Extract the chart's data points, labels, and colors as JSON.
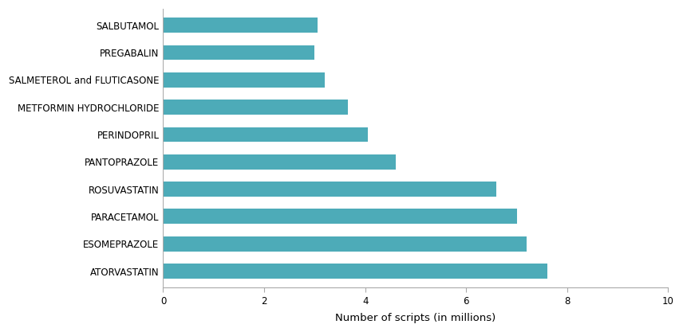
{
  "categories": [
    "ATORVASTATIN",
    "ESOMEPRAZOLE",
    "PARACETAMOL",
    "ROSUVASTATIN",
    "PANTOPRAZOLE",
    "PERINDOPRIL",
    "METFORMIN HYDROCHLORIDE",
    "SALMETEROL and FLUTICASONE",
    "PREGABALIN",
    "SALBUTAMOL"
  ],
  "values": [
    7.6,
    7.2,
    7.0,
    6.6,
    4.6,
    4.05,
    3.65,
    3.2,
    3.0,
    3.05
  ],
  "bar_color": "#4DABB8",
  "xlabel": "Number of scripts (in millions)",
  "xlim": [
    0,
    10
  ],
  "xticks": [
    0,
    2,
    4,
    6,
    8,
    10
  ],
  "background_color": "#ffffff",
  "bar_height": 0.55,
  "tick_fontsize": 8.5,
  "label_fontsize": 9.5
}
